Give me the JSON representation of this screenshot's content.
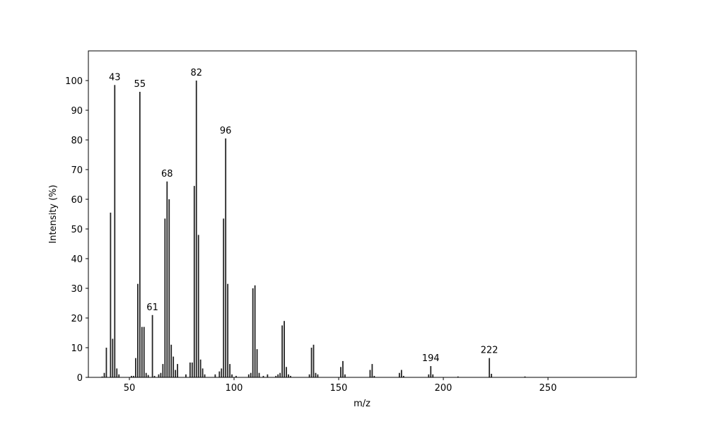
{
  "chart_data": {
    "type": "bar",
    "xlabel": "m/z",
    "ylabel": "Intensity (%)",
    "x": [
      37,
      38,
      39,
      41,
      42,
      43,
      44,
      45,
      51,
      52,
      53,
      54,
      55,
      56,
      57,
      58,
      59,
      61,
      62,
      64,
      65,
      66,
      67,
      68,
      69,
      70,
      71,
      72,
      73,
      77,
      79,
      80,
      81,
      82,
      83,
      84,
      85,
      86,
      91,
      93,
      94,
      95,
      96,
      97,
      98,
      99,
      101,
      107,
      108,
      109,
      110,
      111,
      112,
      114,
      116,
      120,
      121,
      122,
      123,
      124,
      125,
      126,
      127,
      136,
      137,
      138,
      139,
      140,
      151,
      152,
      153,
      165,
      166,
      167,
      179,
      180,
      181,
      193,
      194,
      195,
      207,
      222,
      223,
      239
    ],
    "values": [
      0.3,
      1.5,
      10,
      55.5,
      13,
      98.5,
      3,
      1,
      0.5,
      0.5,
      6.5,
      31.5,
      96.2,
      17,
      17,
      1.5,
      0.8,
      21,
      0.5,
      1,
      1.5,
      4.5,
      53.5,
      66,
      60,
      11,
      7,
      2.5,
      4.5,
      1,
      5,
      5,
      64.5,
      100,
      48,
      6,
      3,
      1,
      1,
      2,
      3,
      53.5,
      80.5,
      31.5,
      4.5,
      1,
      0.5,
      1,
      1.5,
      30,
      31,
      9.5,
      1.5,
      0.5,
      1,
      0.5,
      1,
      1.5,
      17.5,
      19,
      3.5,
      1,
      0.5,
      1,
      10,
      11,
      1.5,
      1,
      3.5,
      5.5,
      1,
      2.5,
      4.5,
      0.5,
      1.5,
      2.5,
      0.5,
      1,
      3.8,
      1,
      0.3,
      6.5,
      1.2,
      0.3
    ],
    "annotations": [
      43,
      55,
      61,
      68,
      82,
      96,
      194,
      222
    ],
    "color": "#222222",
    "xlim": [
      30.4,
      292.2
    ],
    "xticks": [
      50,
      100,
      150,
      200,
      250
    ],
    "ylim": [
      0,
      110
    ],
    "yticks": [
      0,
      10,
      20,
      30,
      40,
      50,
      60,
      70,
      80,
      90,
      100
    ],
    "grid": false
  }
}
